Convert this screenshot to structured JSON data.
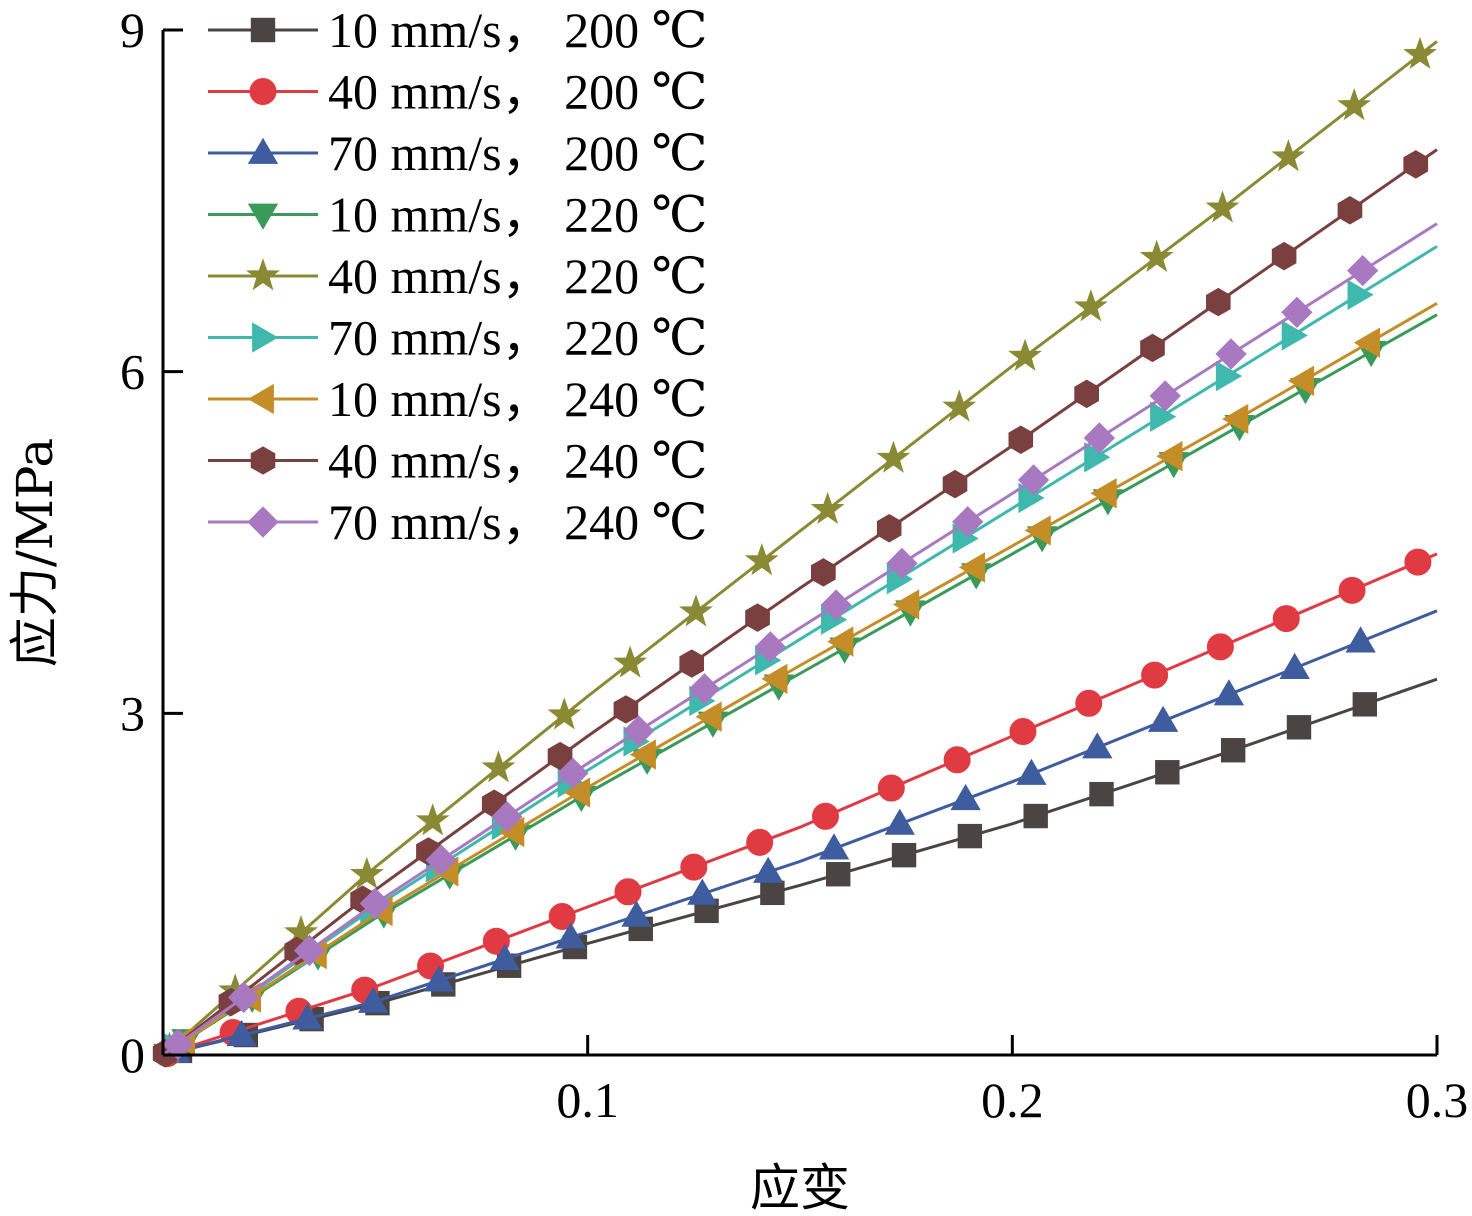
{
  "chart_data": {
    "type": "line",
    "xlabel": "应变",
    "ylabel": "应力/MPa",
    "xlim": [
      0,
      0.3
    ],
    "ylim": [
      0,
      9
    ],
    "xticks": [
      {
        "value": 0.1,
        "label": "0.1"
      },
      {
        "value": 0.2,
        "label": "0.2"
      },
      {
        "value": 0.3,
        "label": "0.3"
      }
    ],
    "yticks": [
      {
        "value": 0,
        "label": "0"
      },
      {
        "value": 3,
        "label": "3"
      },
      {
        "value": 6,
        "label": "6"
      },
      {
        "value": 9,
        "label": "9"
      }
    ],
    "grid": false,
    "legend_position": "top-left",
    "series": [
      {
        "name": "10 mm/s， 200 ℃",
        "color": "#4a4443",
        "marker": "square",
        "x": [
          0,
          0.05,
          0.1,
          0.15,
          0.2,
          0.25,
          0.3
        ],
        "y": [
          0,
          0.45,
          0.98,
          1.49,
          2.03,
          2.65,
          3.3
        ]
      },
      {
        "name": "40 mm/s， 200 ℃",
        "color": "#e03a43",
        "marker": "circle",
        "x": [
          0,
          0.05,
          0.1,
          0.15,
          0.2,
          0.25,
          0.3
        ],
        "y": [
          0,
          0.6,
          1.3,
          2.0,
          2.8,
          3.6,
          4.4
        ]
      },
      {
        "name": "70 mm/s， 200 ℃",
        "color": "#3e5c9e",
        "marker": "triangle-up",
        "x": [
          0,
          0.05,
          0.1,
          0.15,
          0.2,
          0.25,
          0.3
        ],
        "y": [
          0,
          0.47,
          1.08,
          1.7,
          2.4,
          3.15,
          3.9
        ]
      },
      {
        "name": "10 mm/s， 220 ℃",
        "color": "#3a9a5a",
        "marker": "triangle-down",
        "x": [
          0,
          0.05,
          0.1,
          0.15,
          0.2,
          0.25,
          0.3
        ],
        "y": [
          0,
          1.2,
          2.3,
          3.35,
          4.4,
          5.45,
          6.5
        ]
      },
      {
        "name": "40 mm/s， 220 ℃",
        "color": "#8a8a35",
        "marker": "star",
        "x": [
          0,
          0.05,
          0.1,
          0.15,
          0.2,
          0.25,
          0.3
        ],
        "y": [
          0,
          1.65,
          3.15,
          4.6,
          6.05,
          7.45,
          8.9
        ]
      },
      {
        "name": "70 mm/s， 220 ℃",
        "color": "#3fb8ad",
        "marker": "triangle-right",
        "x": [
          0,
          0.05,
          0.1,
          0.15,
          0.2,
          0.25,
          0.3
        ],
        "y": [
          0,
          1.3,
          2.5,
          3.65,
          4.8,
          5.95,
          7.1
        ]
      },
      {
        "name": "10 mm/s， 240 ℃",
        "color": "#c48d28",
        "marker": "triangle-left",
        "x": [
          0,
          0.05,
          0.1,
          0.15,
          0.2,
          0.25,
          0.3
        ],
        "y": [
          0,
          1.23,
          2.35,
          3.42,
          4.47,
          5.52,
          6.6
        ]
      },
      {
        "name": "40 mm/s， 240 ℃",
        "color": "#7a3f3f",
        "marker": "hexagon",
        "x": [
          0,
          0.05,
          0.1,
          0.15,
          0.2,
          0.25,
          0.3
        ],
        "y": [
          0,
          1.45,
          2.8,
          4.1,
          5.35,
          6.65,
          7.95
        ]
      },
      {
        "name": "70 mm/s， 240 ℃",
        "color": "#a879c1",
        "marker": "diamond",
        "x": [
          0,
          0.05,
          0.1,
          0.15,
          0.2,
          0.25,
          0.3
        ],
        "y": [
          0,
          1.33,
          2.56,
          3.75,
          4.93,
          6.12,
          7.3
        ]
      }
    ]
  }
}
